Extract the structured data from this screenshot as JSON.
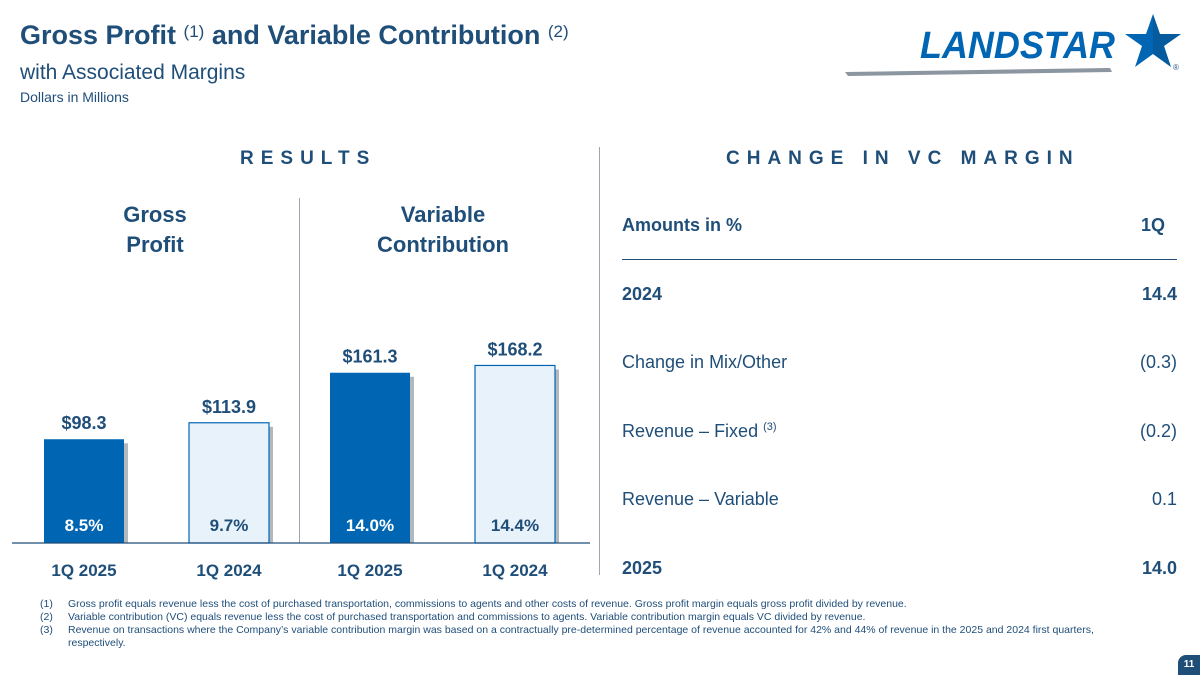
{
  "header": {
    "title_part1": "Gross Profit",
    "title_sup1": "(1)",
    "title_part2": "and Variable Contribution",
    "title_sup2": "(2)",
    "subtitle": "with Associated Margins",
    "units": "Dollars in Millions",
    "logo_text": "LANDSTAR",
    "logo_registered": "®"
  },
  "results": {
    "heading": "RESULTS",
    "gross_profit_label_1": "Gross",
    "gross_profit_label_2": "Profit",
    "variable_contribution_label_1": "Variable",
    "variable_contribution_label_2": "Contribution"
  },
  "chart_data": {
    "type": "bar",
    "categories": [
      "1Q 2025",
      "1Q 2024",
      "1Q 2025",
      "1Q 2024"
    ],
    "groups": [
      "Gross Profit",
      "Variable Contribution"
    ],
    "values": [
      98.3,
      113.9,
      161.3,
      168.2
    ],
    "value_labels": [
      "$98.3",
      "$113.9",
      "$161.3",
      "$168.2"
    ],
    "margin_labels": [
      "8.5%",
      "9.7%",
      "14.0%",
      "14.4%"
    ],
    "margins": [
      8.5,
      9.7,
      14.0,
      14.4
    ],
    "ylim": [
      0,
      180
    ],
    "colors": {
      "dark": "#0066b3",
      "light": "#e8f2fb",
      "outline": "#0066b3"
    }
  },
  "vc_margin": {
    "heading": "CHANGE IN VC MARGIN",
    "header_label": "Amounts in %",
    "header_value": "1Q",
    "rows": [
      {
        "label": "2024",
        "value": "14.4"
      },
      {
        "label": "Change in Mix/Other",
        "value": "(0.3)"
      },
      {
        "label": "Revenue – Fixed",
        "sup": "(3)",
        "value": "(0.2)"
      },
      {
        "label": "Revenue – Variable",
        "value": "0.1"
      },
      {
        "label": "2025",
        "value": "14.0"
      }
    ]
  },
  "footnotes": [
    {
      "num": "(1)",
      "text": "Gross profit equals revenue less the cost of purchased transportation, commissions to agents and other costs of revenue.  Gross profit margin equals gross profit divided by revenue."
    },
    {
      "num": "(2)",
      "text": "Variable contribution (VC) equals revenue less the cost of purchased transportation and commissions to agents.  Variable contribution margin equals VC divided by revenue."
    },
    {
      "num": "(3)",
      "text": "Revenue on transactions where the Company’s variable contribution margin was based on a contractually pre-determined percentage of revenue accounted for 42% and 44% of revenue in the 2025 and 2024 first quarters, respectively."
    }
  ],
  "page_number": "11",
  "colors": {
    "navy": "#1f4e79",
    "brand_blue": "#0066b3"
  }
}
